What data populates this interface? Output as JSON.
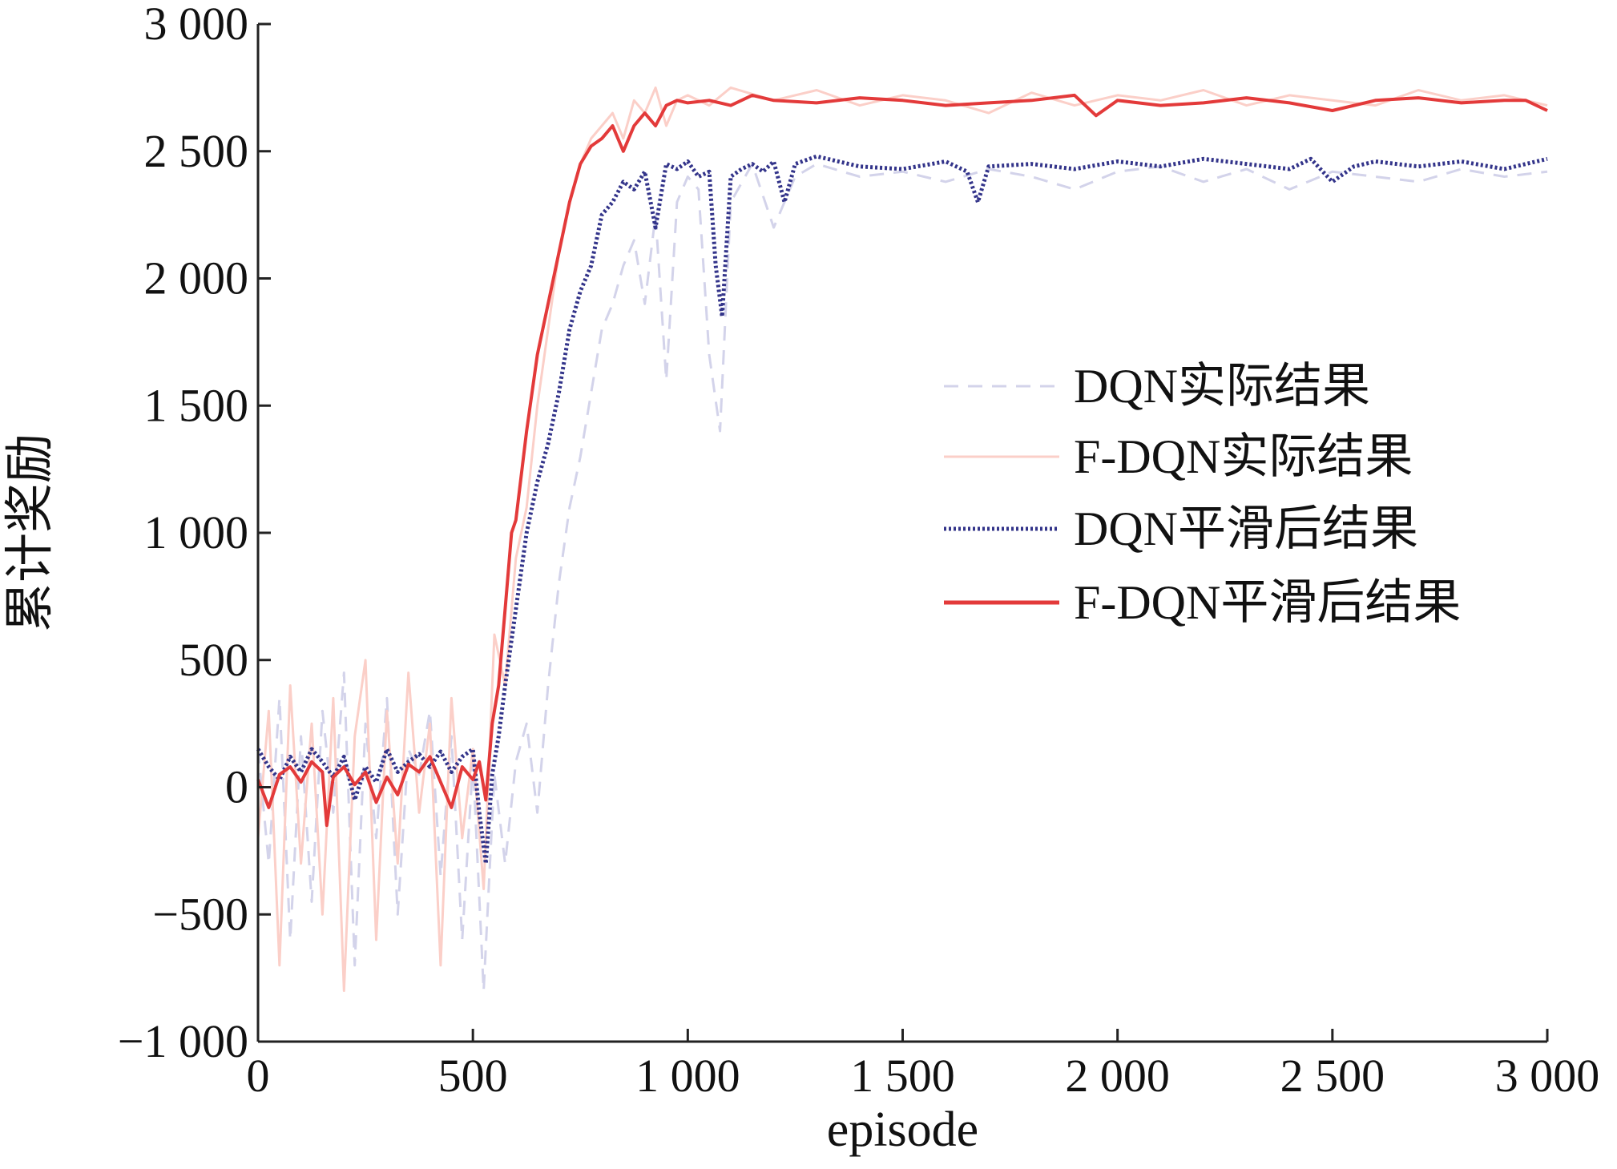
{
  "chart_data": {
    "type": "line",
    "title": "",
    "xlabel": "episode",
    "ylabel": "累计奖励",
    "xlim": [
      0,
      3000
    ],
    "ylim": [
      -1000,
      3000
    ],
    "x_ticks": [
      0,
      500,
      1000,
      1500,
      2000,
      2500,
      3000
    ],
    "x_tick_labels": [
      "0",
      "500",
      "1 000",
      "1 500",
      "2 000",
      "2 500",
      "3 000"
    ],
    "y_ticks": [
      -1000,
      -500,
      0,
      500,
      1000,
      1500,
      2000,
      2500,
      3000
    ],
    "y_tick_labels": [
      "−1 000",
      "−500",
      "0",
      "500",
      "1 000",
      "1 500",
      "2 000",
      "2 500",
      "3 000"
    ],
    "grid": false,
    "legend_position": "center-right",
    "series": [
      {
        "name": "DQN实际结果",
        "style": "dashed",
        "color": "#d3d3ea",
        "x": [
          0,
          25,
          50,
          75,
          100,
          125,
          150,
          175,
          200,
          225,
          250,
          275,
          300,
          325,
          350,
          375,
          400,
          425,
          450,
          475,
          500,
          525,
          550,
          575,
          600,
          625,
          650,
          675,
          700,
          725,
          750,
          775,
          800,
          825,
          850,
          875,
          900,
          925,
          950,
          975,
          1000,
          1025,
          1050,
          1075,
          1100,
          1150,
          1200,
          1250,
          1300,
          1400,
          1500,
          1600,
          1700,
          1800,
          1900,
          2000,
          2100,
          2200,
          2300,
          2400,
          2500,
          2600,
          2700,
          2800,
          2900,
          3000
        ],
        "y": [
          150,
          -300,
          350,
          -600,
          200,
          -450,
          300,
          -100,
          450,
          -700,
          250,
          -200,
          350,
          -500,
          150,
          50,
          300,
          -350,
          200,
          -600,
          100,
          -800,
          50,
          -300,
          100,
          250,
          -100,
          400,
          800,
          1100,
          1300,
          1550,
          1800,
          1900,
          2050,
          2150,
          1900,
          2250,
          1600,
          2300,
          2400,
          2350,
          1700,
          1400,
          2300,
          2450,
          2200,
          2400,
          2450,
          2400,
          2420,
          2380,
          2430,
          2400,
          2350,
          2420,
          2440,
          2380,
          2430,
          2350,
          2420,
          2400,
          2380,
          2430,
          2400,
          2420
        ]
      },
      {
        "name": "F-DQN实际结果",
        "style": "solid",
        "color": "#fbcfc8",
        "x": [
          0,
          25,
          50,
          75,
          100,
          125,
          150,
          175,
          200,
          225,
          250,
          275,
          300,
          325,
          350,
          375,
          400,
          425,
          450,
          475,
          500,
          525,
          550,
          575,
          600,
          625,
          650,
          675,
          700,
          725,
          750,
          775,
          800,
          825,
          850,
          875,
          900,
          925,
          950,
          975,
          1000,
          1050,
          1100,
          1200,
          1300,
          1400,
          1500,
          1600,
          1700,
          1800,
          1900,
          2000,
          2100,
          2200,
          2300,
          2400,
          2500,
          2600,
          2700,
          2800,
          2900,
          3000
        ],
        "y": [
          -200,
          300,
          -700,
          400,
          -300,
          250,
          -500,
          350,
          -800,
          200,
          500,
          -600,
          300,
          -300,
          450,
          -100,
          250,
          -700,
          350,
          -200,
          150,
          -400,
          600,
          400,
          900,
          1100,
          1500,
          1800,
          2100,
          2300,
          2450,
          2550,
          2600,
          2650,
          2550,
          2700,
          2650,
          2750,
          2600,
          2700,
          2720,
          2680,
          2750,
          2700,
          2740,
          2680,
          2720,
          2700,
          2650,
          2730,
          2680,
          2720,
          2700,
          2740,
          2680,
          2720,
          2700,
          2680,
          2740,
          2700,
          2720,
          2680
        ]
      },
      {
        "name": "DQN平滑后结果",
        "style": "dotted",
        "color": "#33348a",
        "x": [
          0,
          25,
          50,
          75,
          100,
          125,
          150,
          175,
          200,
          225,
          250,
          275,
          300,
          325,
          350,
          375,
          400,
          425,
          450,
          475,
          500,
          515,
          530,
          545,
          560,
          575,
          600,
          625,
          650,
          675,
          700,
          725,
          750,
          775,
          800,
          825,
          850,
          875,
          900,
          925,
          950,
          975,
          1000,
          1025,
          1050,
          1065,
          1080,
          1100,
          1125,
          1150,
          1175,
          1200,
          1225,
          1250,
          1300,
          1400,
          1500,
          1600,
          1650,
          1675,
          1700,
          1800,
          1900,
          2000,
          2100,
          2200,
          2300,
          2400,
          2450,
          2500,
          2550,
          2600,
          2700,
          2800,
          2900,
          3000
        ],
        "y": [
          150,
          80,
          30,
          120,
          60,
          150,
          100,
          40,
          120,
          -50,
          80,
          20,
          150,
          60,
          100,
          130,
          80,
          140,
          60,
          120,
          150,
          -100,
          -300,
          50,
          200,
          400,
          700,
          1000,
          1200,
          1350,
          1550,
          1800,
          1950,
          2050,
          2250,
          2300,
          2380,
          2350,
          2420,
          2200,
          2450,
          2430,
          2460,
          2400,
          2420,
          2050,
          1850,
          2400,
          2430,
          2450,
          2420,
          2460,
          2300,
          2450,
          2480,
          2440,
          2430,
          2460,
          2420,
          2300,
          2440,
          2450,
          2430,
          2460,
          2440,
          2470,
          2450,
          2430,
          2470,
          2380,
          2440,
          2460,
          2440,
          2460,
          2430,
          2470
        ]
      },
      {
        "name": "F-DQN平滑后结果",
        "style": "solid",
        "color": "#e33a3a",
        "x": [
          0,
          25,
          50,
          75,
          100,
          125,
          150,
          160,
          175,
          200,
          225,
          250,
          275,
          300,
          325,
          350,
          375,
          400,
          425,
          450,
          475,
          500,
          515,
          530,
          545,
          560,
          575,
          590,
          600,
          625,
          650,
          675,
          700,
          725,
          750,
          775,
          800,
          825,
          850,
          875,
          900,
          925,
          950,
          975,
          1000,
          1050,
          1100,
          1150,
          1200,
          1300,
          1400,
          1500,
          1600,
          1700,
          1800,
          1900,
          1950,
          2000,
          2100,
          2200,
          2300,
          2400,
          2500,
          2600,
          2700,
          2800,
          2900,
          2950,
          3000
        ],
        "y": [
          30,
          -80,
          50,
          80,
          20,
          100,
          60,
          -150,
          40,
          80,
          10,
          60,
          -60,
          40,
          -30,
          90,
          60,
          120,
          20,
          -80,
          80,
          30,
          100,
          -50,
          250,
          400,
          700,
          1000,
          1050,
          1400,
          1700,
          1900,
          2100,
          2300,
          2450,
          2520,
          2550,
          2600,
          2500,
          2600,
          2650,
          2600,
          2680,
          2700,
          2690,
          2700,
          2680,
          2720,
          2700,
          2690,
          2710,
          2700,
          2680,
          2690,
          2700,
          2720,
          2640,
          2700,
          2680,
          2690,
          2710,
          2690,
          2660,
          2700,
          2710,
          2690,
          2700,
          2700,
          2660
        ]
      }
    ]
  }
}
